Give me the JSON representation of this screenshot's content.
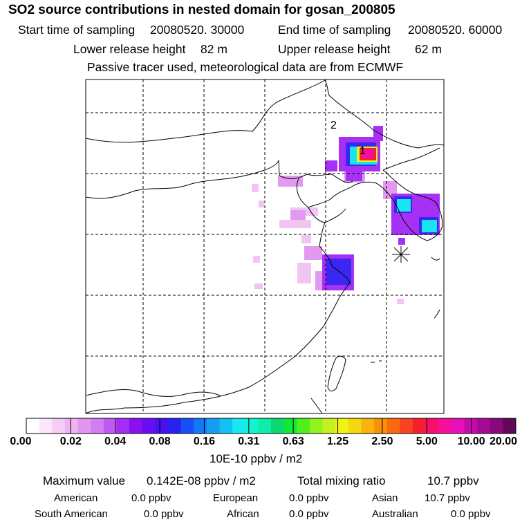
{
  "header": {
    "title": "SO2 source contributions in nested domain for gosan_200805",
    "start_label": "Start time of sampling",
    "start_value": "20080520. 30000",
    "end_label": "End time of sampling",
    "end_value": "20080520. 60000",
    "lower_label": "Lower release height",
    "lower_value": "82 m",
    "upper_label": "Upper release height",
    "upper_value": "62 m",
    "note": "Passive tracer used, meteorological data are from ECMWF"
  },
  "chart_data": {
    "type": "heatmap",
    "title": "SO2 source contributions in nested domain for gosan_200805",
    "colorbar": {
      "unit": "10E-10 ppbv / m2",
      "ticks": [
        "0.00",
        "0.02",
        "0.04",
        "0.08",
        "0.16",
        "0.31",
        "0.63",
        "1.25",
        "2.50",
        "5.00",
        "10.00",
        "20.00"
      ],
      "colors": [
        "#ffffff",
        "#fbe6fb",
        "#f5ccf5",
        "#eeb2f0",
        "#e197f0",
        "#d27ef0",
        "#bf5af3",
        "#a42cf4",
        "#8a10f0",
        "#6a0ef2",
        "#4811f2",
        "#2a20f0",
        "#1650f4",
        "#1478f4",
        "#169ef4",
        "#14c0f2",
        "#1ae8f0",
        "#14f2d4",
        "#10ecaa",
        "#0cd870",
        "#12e834",
        "#52f01a",
        "#92f21e",
        "#c4f020",
        "#f0f414",
        "#f6d80e",
        "#f8b40c",
        "#f8900a",
        "#f86a10",
        "#f64420",
        "#f42032",
        "#f4106a",
        "#f4109c",
        "#e610b8",
        "#c60ca8",
        "#a40a94",
        "#860a7c",
        "#620858"
      ]
    },
    "markers": [
      {
        "label": "1",
        "lon": 125.3,
        "lat": 43.9
      },
      {
        "label": "2",
        "lon": 124.5,
        "lat": 46.3
      }
    ],
    "receptor_symbol": "*",
    "grid_lon": [
      105,
      110,
      115,
      120,
      125,
      130
    ],
    "grid_lat": [
      20,
      25,
      30,
      35,
      40,
      45,
      50
    ]
  },
  "footer": {
    "max_label": "Maximum value",
    "max_value": "0.142E-08 ppbv / m2",
    "total_label": "Total mixing ratio",
    "total_value": "10.7 ppbv",
    "regions": [
      {
        "name": "American",
        "value": "0.0 ppbv"
      },
      {
        "name": "European",
        "value": "0.0 ppbv"
      },
      {
        "name": "Asian",
        "value": "10.7 ppbv"
      },
      {
        "name": "South American",
        "value": "0.0 ppbv"
      },
      {
        "name": "African",
        "value": "0.0 ppbv"
      },
      {
        "name": "Australian",
        "value": "0.0 ppbv"
      }
    ]
  }
}
